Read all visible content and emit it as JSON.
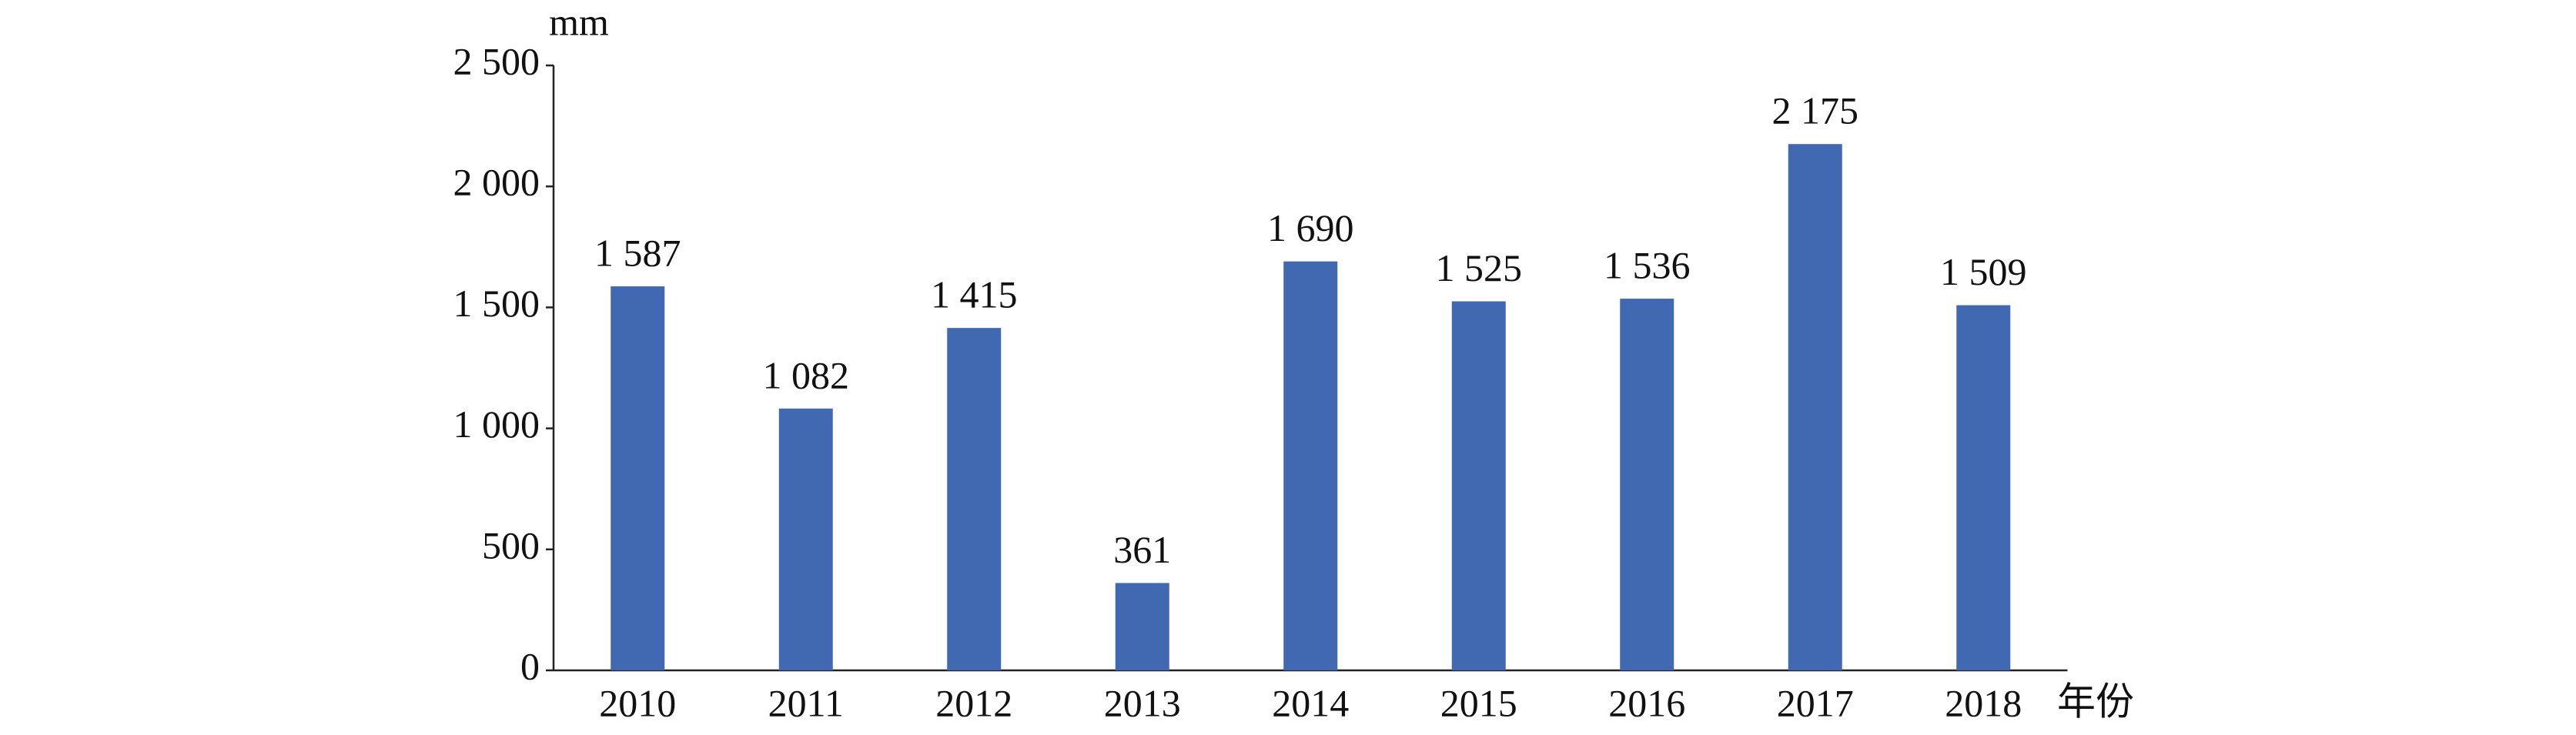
{
  "chart_data": {
    "type": "bar",
    "y_label": "mm",
    "x_label": "年份",
    "categories": [
      "2010",
      "2011",
      "2012",
      "2013",
      "2014",
      "2015",
      "2016",
      "2017",
      "2018"
    ],
    "values": [
      1587,
      1082,
      1415,
      361,
      1690,
      1525,
      1536,
      2175,
      1509
    ],
    "value_labels": [
      "1 587",
      "1 082",
      "1 415",
      "361",
      "1 690",
      "1 525",
      "1 536",
      "2 175",
      "1 509"
    ],
    "color": "#4169b1",
    "ylim": [
      0,
      2500
    ],
    "yticks": [
      0,
      500,
      {
        "value": 1000,
        "label": "1 000"
      },
      {
        "value": 1500,
        "label": "1 500"
      },
      {
        "value": 2000,
        "label": "2 000"
      },
      {
        "value": 2500,
        "label": "2 500"
      }
    ],
    "grid": false
  }
}
